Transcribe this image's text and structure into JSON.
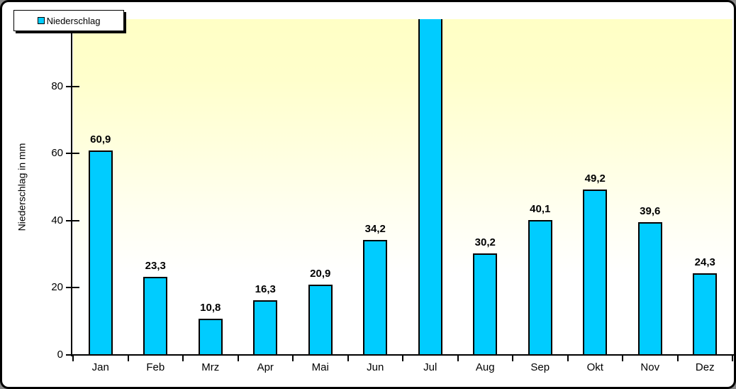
{
  "chart_data": {
    "type": "bar",
    "title": "",
    "categories": [
      "Jan",
      "Feb",
      "Mrz",
      "Apr",
      "Mai",
      "Jun",
      "Jul",
      "Aug",
      "Sep",
      "Okt",
      "Nov",
      "Dez"
    ],
    "series": [
      {
        "name": "Niederschlag",
        "values": [
          60.9,
          23.3,
          10.8,
          16.3,
          20.9,
          34.2,
          null,
          30.2,
          40.1,
          49.2,
          39.6,
          24.3
        ],
        "value_labels": [
          "60,9",
          "23,3",
          "10,8",
          "16,3",
          "20,9",
          "34,2",
          "",
          "30,2",
          "40,1",
          "49,2",
          "39,6",
          "24,3"
        ]
      }
    ],
    "xlabel": "",
    "ylabel": "Niederschlag in mm",
    "ylim": [
      0,
      100
    ],
    "yticks": [
      0,
      20,
      40,
      60,
      80
    ],
    "ytick_labels": [
      "0",
      "20",
      "40",
      "60",
      "80"
    ],
    "grid": false,
    "legend": {
      "position": "top-left",
      "entries": [
        {
          "label": "Niederschlag",
          "color": "#00CCFF"
        }
      ]
    },
    "annotations": {
      "jul_bar_clipped_at_top": true,
      "note_visible_in_pixels": "Jul bar extends beyond the top of the plot area and shows no value label"
    },
    "colors": {
      "bar_fill": "#00CCFF",
      "bar_border": "#000000",
      "plot_background_top": "#FFFFC5",
      "plot_background_bottom": "#FFFFFF",
      "axis": "#000000",
      "outer_background": "#FFFFFF",
      "outer_border": "#000000",
      "text": "#000000"
    }
  }
}
